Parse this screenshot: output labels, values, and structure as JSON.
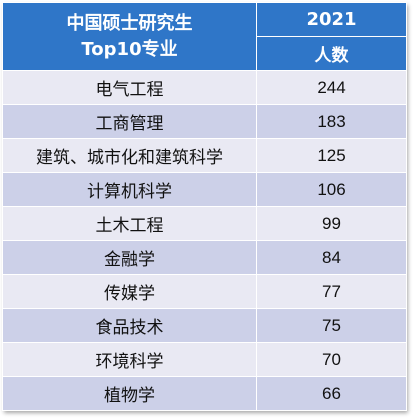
{
  "header": {
    "title_line1": "中国硕士研究生",
    "title_line2": "Top10专业",
    "year": "2021",
    "count_label": "人数"
  },
  "rows": [
    {
      "major": "电气工程",
      "count": "244"
    },
    {
      "major": "工商管理",
      "count": "183"
    },
    {
      "major": "建筑、城市化和建筑科学",
      "count": "125"
    },
    {
      "major": "计算机科学",
      "count": "106"
    },
    {
      "major": "土木工程",
      "count": "99"
    },
    {
      "major": "金融学",
      "count": "84"
    },
    {
      "major": "传媒学",
      "count": "77"
    },
    {
      "major": "食品技术",
      "count": "75"
    },
    {
      "major": "环境科学",
      "count": "70"
    },
    {
      "major": "植物学",
      "count": "66"
    }
  ],
  "colors": {
    "header": "#2f76c8",
    "row_light": "#e9e9f3",
    "row_dark": "#ccd0e8"
  }
}
